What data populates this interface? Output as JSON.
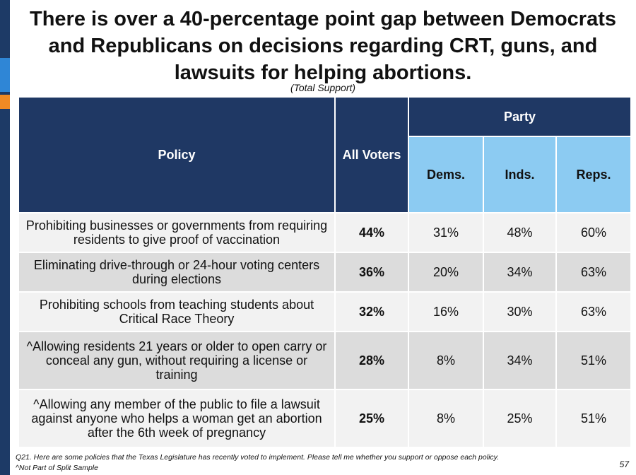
{
  "title": "There is over a 40-percentage point gap between Democrats and Republicans on decisions regarding CRT, guns, and lawsuits for helping abortions.",
  "subtitle": "(Total Support)",
  "table": {
    "header_policy": "Policy",
    "header_all": "All Voters",
    "header_party": "Party",
    "header_dems": "Dems.",
    "header_inds": "Inds.",
    "header_reps": "Reps."
  },
  "chart_data": {
    "type": "table",
    "title": "There is over a 40-percentage point gap between Democrats and Republicans on decisions regarding CRT, guns, and lawsuits for helping abortions.",
    "subtitle": "(Total Support)",
    "columns": [
      "All Voters",
      "Dems.",
      "Inds.",
      "Reps."
    ],
    "rows": [
      {
        "policy": "Prohibiting businesses or governments from requiring residents to give proof of vaccination",
        "all": "44%",
        "dems": "31%",
        "inds": "48%",
        "reps": "60%"
      },
      {
        "policy": "Eliminating drive-through or 24-hour voting centers during elections",
        "all": "36%",
        "dems": "20%",
        "inds": "34%",
        "reps": "63%"
      },
      {
        "policy": "Prohibiting schools from teaching students about Critical Race Theory",
        "all": "32%",
        "dems": "16%",
        "inds": "30%",
        "reps": "63%"
      },
      {
        "policy": "^Allowing residents 21 years or older to open carry or conceal any gun, without requiring a license or training",
        "all": "28%",
        "dems": "8%",
        "inds": "34%",
        "reps": "51%"
      },
      {
        "policy": "^Allowing any member of the public to file a lawsuit against anyone who helps a woman get an abortion after the 6th week of pregnancy",
        "all": "25%",
        "dems": "8%",
        "inds": "25%",
        "reps": "51%"
      }
    ]
  },
  "footnote": {
    "question": "Q21. Here are some policies that the Texas Legislature has recently voted to implement. Please tell me whether you support or oppose each policy.",
    "note": "^Not Part of Split Sample"
  },
  "page_number": "57",
  "colors": {
    "header_dark": "#1f3864",
    "header_light": "#8ccbf2",
    "row_light": "#f2f2f2",
    "row_dark": "#dcdcdc",
    "accent_blue": "#2f86d6",
    "accent_orange": "#f08a24"
  }
}
